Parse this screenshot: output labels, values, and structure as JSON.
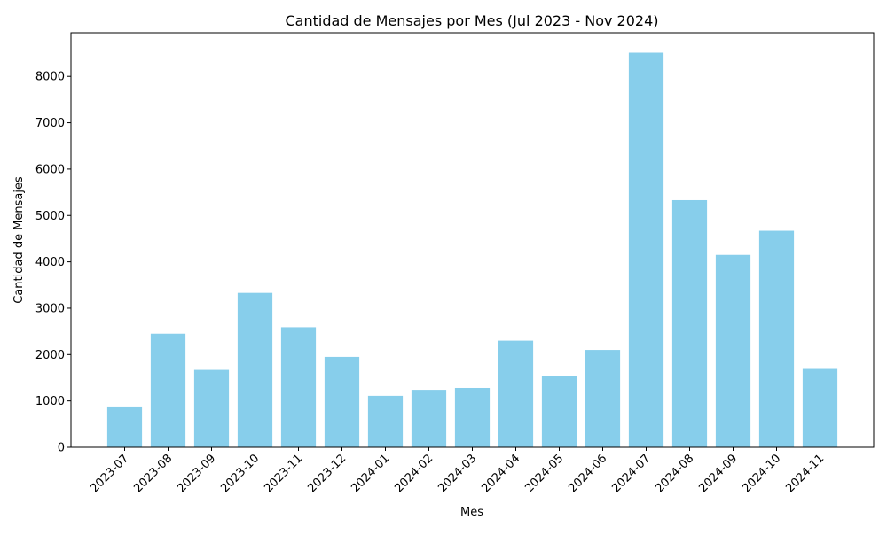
{
  "chart_data": {
    "type": "bar",
    "title": "Cantidad de Mensajes por Mes (Jul 2023 - Nov 2024)",
    "xlabel": "Mes",
    "ylabel": "Cantidad de Mensajes",
    "categories": [
      "2023-07",
      "2023-08",
      "2023-09",
      "2023-10",
      "2023-11",
      "2023-12",
      "2024-01",
      "2024-02",
      "2024-03",
      "2024-04",
      "2024-05",
      "2024-06",
      "2024-07",
      "2024-08",
      "2024-09",
      "2024-10",
      "2024-11"
    ],
    "values": [
      880,
      2450,
      1670,
      3330,
      2590,
      1950,
      1110,
      1240,
      1280,
      2300,
      1530,
      2100,
      8510,
      5330,
      4150,
      4670,
      1690
    ],
    "ylim": [
      0,
      8940
    ],
    "yticks": [
      0,
      1000,
      2000,
      3000,
      4000,
      5000,
      6000,
      7000,
      8000
    ],
    "grid": false,
    "bar_color": "#87ceeb"
  }
}
